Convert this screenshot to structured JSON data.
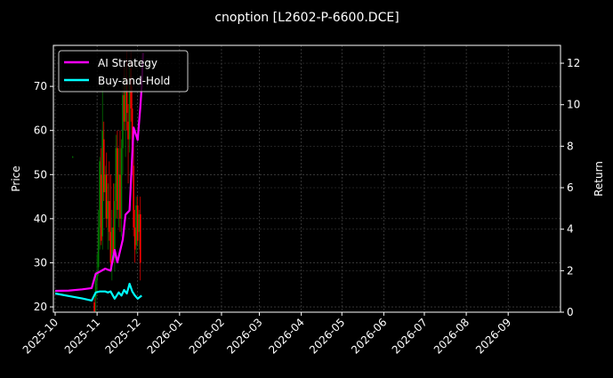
{
  "chart_data": {
    "type": "line",
    "title": "cnoption [L2602-P-6600.DCE]",
    "xlabel": "",
    "ylabel": "Price",
    "y2label": "Return",
    "x_origin": "2025-10-01",
    "x_range_days": [
      0,
      375
    ],
    "ylim": [
      18.8,
      79.3
    ],
    "y2lim": [
      0,
      12.86
    ],
    "yticks": [
      20,
      30,
      40,
      50,
      60,
      70
    ],
    "y2ticks": [
      0,
      2,
      4,
      6,
      8,
      10,
      12
    ],
    "xticks": [
      {
        "label": "2025-10",
        "day": 0
      },
      {
        "label": "2025-11",
        "day": 31
      },
      {
        "label": "2025-12",
        "day": 61
      },
      {
        "label": "2026-01",
        "day": 92
      },
      {
        "label": "2026-02",
        "day": 123
      },
      {
        "label": "2026-03",
        "day": 151
      },
      {
        "label": "2026-04",
        "day": 182
      },
      {
        "label": "2026-05",
        "day": 212
      },
      {
        "label": "2026-06",
        "day": 243
      },
      {
        "label": "2026-07",
        "day": 273
      },
      {
        "label": "2026-08",
        "day": 304
      },
      {
        "label": "2026-09",
        "day": 335
      }
    ],
    "grid": true,
    "legend_position": "top-left",
    "series": [
      {
        "name": "AI Strategy",
        "axis": "right",
        "color": "#ff00ff",
        "days": [
          0,
          10,
          20,
          27,
          30,
          33,
          37,
          41,
          44,
          46,
          50,
          52,
          55,
          58,
          61,
          63,
          64,
          65
        ],
        "values": [
          1.03,
          1.04,
          1.1,
          1.16,
          1.85,
          1.95,
          2.1,
          2.0,
          3.0,
          2.4,
          3.5,
          4.7,
          4.9,
          8.9,
          8.3,
          9.9,
          10.9,
          12.5
        ]
      },
      {
        "name": "Buy-and-Hold",
        "axis": "right",
        "color": "#00ffff",
        "days": [
          0,
          10,
          20,
          27,
          30,
          33,
          37,
          39,
          41,
          44,
          47,
          49,
          51,
          53,
          55,
          57,
          59,
          61,
          63,
          64
        ],
        "values": [
          0.9,
          0.78,
          0.66,
          0.56,
          0.95,
          1.0,
          1.0,
          0.95,
          1.0,
          0.65,
          0.95,
          0.8,
          1.07,
          0.9,
          1.37,
          1.0,
          0.8,
          0.65,
          0.75,
          0.8
        ]
      }
    ],
    "candles": {
      "axis": "left",
      "up_color": "#008000",
      "down_color": "#ff0000",
      "columns": [
        "day",
        "open",
        "high",
        "low",
        "close"
      ],
      "rows": [
        [
          13,
          54,
          54.2,
          53.8,
          54
        ],
        [
          29,
          21,
          22,
          18.8,
          19
        ],
        [
          30,
          22,
          28,
          18.8,
          26
        ],
        [
          31,
          26,
          32,
          23,
          28
        ],
        [
          32,
          29,
          42,
          27,
          38
        ],
        [
          33,
          38,
          54,
          33,
          53
        ],
        [
          34,
          50,
          56,
          34,
          35
        ],
        [
          35,
          36,
          70,
          33,
          60
        ],
        [
          36,
          58,
          62,
          44,
          46
        ],
        [
          37,
          46,
          52,
          40,
          50
        ],
        [
          38,
          50,
          55,
          38,
          40
        ],
        [
          39,
          40,
          48,
          33,
          44
        ],
        [
          40,
          44,
          53,
          35,
          37
        ],
        [
          41,
          37,
          50,
          28,
          30
        ],
        [
          42,
          30,
          42,
          26,
          38
        ],
        [
          43,
          38,
          48,
          30,
          32
        ],
        [
          44,
          31,
          48,
          28,
          44
        ],
        [
          45,
          44,
          59,
          40,
          56
        ],
        [
          46,
          56,
          60,
          40,
          42
        ],
        [
          47,
          42,
          56,
          38,
          50
        ],
        [
          48,
          50,
          60,
          37,
          40
        ],
        [
          49,
          40,
          58,
          36,
          56
        ],
        [
          50,
          56,
          72,
          50,
          68
        ],
        [
          51,
          68,
          76,
          60,
          62
        ],
        [
          52,
          62,
          75,
          54,
          72
        ],
        [
          53,
          72,
          78,
          60,
          64
        ],
        [
          54,
          62,
          66,
          48,
          58
        ],
        [
          55,
          58,
          76,
          55,
          74
        ],
        [
          56,
          74,
          78,
          62,
          65
        ],
        [
          57,
          65,
          70,
          50,
          52
        ],
        [
          58,
          52,
          58,
          36,
          38
        ],
        [
          59,
          38,
          42,
          30,
          33
        ],
        [
          60,
          34,
          45,
          32,
          43
        ],
        [
          61,
          43,
          45,
          34,
          35
        ],
        [
          62,
          37,
          42,
          33,
          41
        ],
        [
          63,
          41,
          45,
          26,
          30
        ]
      ]
    }
  }
}
